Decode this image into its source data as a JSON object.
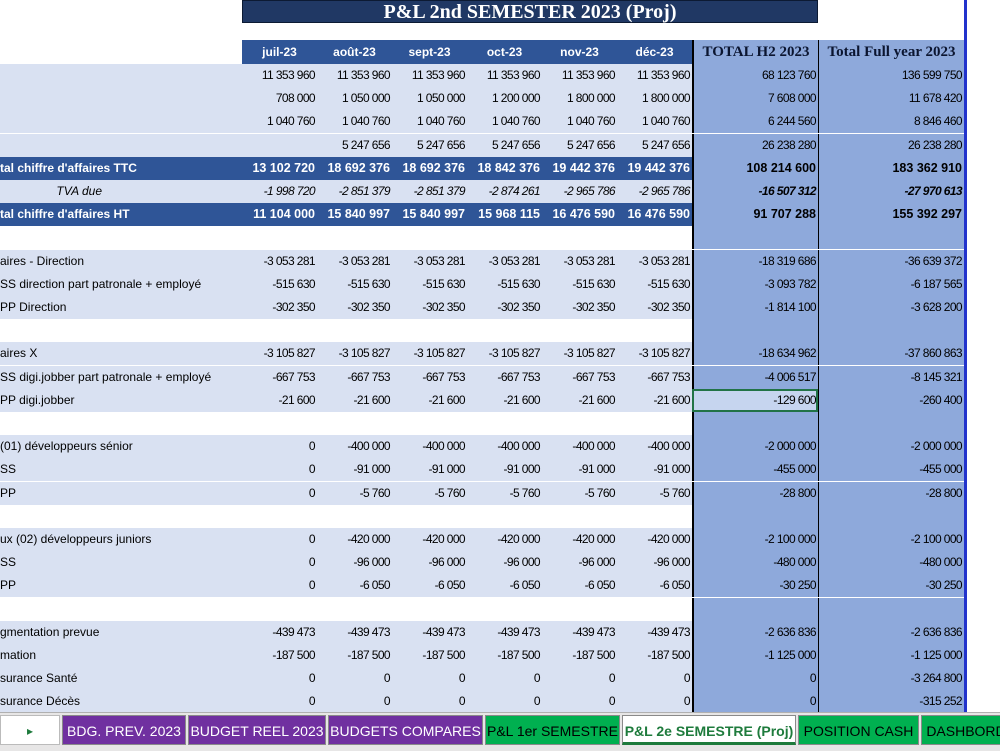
{
  "title": "P&L 2nd SEMESTER 2023 (Proj)",
  "columns": [
    "juil-23",
    "août-23",
    "sept-23",
    "oct-23",
    "nov-23",
    "déc-23"
  ],
  "total_h2_label": "TOTAL H2 2023",
  "total_year_label": "Total Full year 2023",
  "rows": [
    {
      "style": "light",
      "label": "",
      "vals": [
        "11 353 960",
        "11 353 960",
        "11 353 960",
        "11 353 960",
        "11 353 960",
        "11 353 960"
      ],
      "h2": "68 123 760",
      "fy": "136 599 750"
    },
    {
      "style": "light",
      "label": "",
      "vals": [
        "708 000",
        "1 050 000",
        "1 050 000",
        "1 200 000",
        "1 800 000",
        "1 800 000"
      ],
      "h2": "7 608 000",
      "fy": "11 678 420"
    },
    {
      "style": "light",
      "label": "",
      "vals": [
        "1 040 760",
        "1 040 760",
        "1 040 760",
        "1 040 760",
        "1 040 760",
        "1 040 760"
      ],
      "h2": "6 244 560",
      "fy": "8 846 460"
    },
    {
      "style": "light",
      "label": "",
      "vals": [
        "",
        "5 247 656",
        "5 247 656",
        "5 247 656",
        "5 247 656",
        "5 247 656"
      ],
      "h2": "26 238 280",
      "fy": "26 238 280"
    },
    {
      "style": "dark",
      "label": "tal chiffre d'affaires TTC",
      "vals": [
        "13 102 720",
        "18 692 376",
        "18 692 376",
        "18 842 376",
        "19 442 376",
        "19 442 376"
      ],
      "h2": "108 214 600",
      "fy": "183 362 910"
    },
    {
      "style": "light italic",
      "label": "TVA due",
      "vals": [
        "-1 998 720",
        "-2 851 379",
        "-2 851 379",
        "-2 874 261",
        "-2 965 786",
        "-2 965 786"
      ],
      "h2": "-16 507 312",
      "fy": "-27 970 613"
    },
    {
      "style": "dark",
      "label": "tal chiffre d'affaires HT",
      "vals": [
        "11 104 000",
        "15 840 997",
        "15 840 997",
        "15 968 115",
        "16 476 590",
        "16 476 590"
      ],
      "h2": "91 707 288",
      "fy": "155 392 297"
    },
    {
      "style": "spacer",
      "label": "",
      "vals": [
        "",
        "",
        "",
        "",
        "",
        ""
      ],
      "h2": "",
      "fy": ""
    },
    {
      "style": "light",
      "label": "aires - Direction",
      "vals": [
        "-3 053 281",
        "-3 053 281",
        "-3 053 281",
        "-3 053 281",
        "-3 053 281",
        "-3 053 281"
      ],
      "h2": "-18 319 686",
      "fy": "-36 639 372"
    },
    {
      "style": "light",
      "label": "SS direction part patronale + employé",
      "vals": [
        "-515 630",
        "-515 630",
        "-515 630",
        "-515 630",
        "-515 630",
        "-515 630"
      ],
      "h2": "-3 093 782",
      "fy": "-6 187 565"
    },
    {
      "style": "light",
      "label": "PP Direction",
      "vals": [
        "-302 350",
        "-302 350",
        "-302 350",
        "-302 350",
        "-302 350",
        "-302 350"
      ],
      "h2": "-1 814 100",
      "fy": "-3 628 200"
    },
    {
      "style": "spacer",
      "label": "",
      "vals": [
        "",
        "",
        "",
        "",
        "",
        ""
      ],
      "h2": "",
      "fy": ""
    },
    {
      "style": "light",
      "label": "aires X",
      "vals": [
        "-3 105 827",
        "-3 105 827",
        "-3 105 827",
        "-3 105 827",
        "-3 105 827",
        "-3 105 827"
      ],
      "h2": "-18 634 962",
      "fy": "-37 860 863"
    },
    {
      "style": "light",
      "label": "SS digi.jobber part patronale + employé",
      "vals": [
        "-667 753",
        "-667 753",
        "-667 753",
        "-667 753",
        "-667 753",
        "-667 753"
      ],
      "h2": "-4 006 517",
      "fy": "-8 145 321"
    },
    {
      "style": "light sel",
      "label": "PP digi.jobber",
      "vals": [
        "-21 600",
        "-21 600",
        "-21 600",
        "-21 600",
        "-21 600",
        "-21 600"
      ],
      "h2": "-129 600",
      "fy": "-260 400"
    },
    {
      "style": "spacer",
      "label": "",
      "vals": [
        "",
        "",
        "",
        "",
        "",
        ""
      ],
      "h2": "",
      "fy": ""
    },
    {
      "style": "light",
      "label": "(01) développeurs sénior",
      "vals": [
        "0",
        "-400 000",
        "-400 000",
        "-400 000",
        "-400 000",
        "-400 000"
      ],
      "h2": "-2 000 000",
      "fy": "-2 000 000"
    },
    {
      "style": "light",
      "label": "SS",
      "vals": [
        "0",
        "-91 000",
        "-91 000",
        "-91 000",
        "-91 000",
        "-91 000"
      ],
      "h2": "-455 000",
      "fy": "-455 000"
    },
    {
      "style": "light",
      "label": "PP",
      "vals": [
        "0",
        "-5 760",
        "-5 760",
        "-5 760",
        "-5 760",
        "-5 760"
      ],
      "h2": "-28 800",
      "fy": "-28 800"
    },
    {
      "style": "spacer",
      "label": "",
      "vals": [
        "",
        "",
        "",
        "",
        "",
        ""
      ],
      "h2": "",
      "fy": ""
    },
    {
      "style": "light",
      "label": "ux (02) développeurs juniors",
      "vals": [
        "0",
        "-420 000",
        "-420 000",
        "-420 000",
        "-420 000",
        "-420 000"
      ],
      "h2": "-2 100 000",
      "fy": "-2 100 000"
    },
    {
      "style": "light",
      "label": "SS",
      "vals": [
        "0",
        "-96 000",
        "-96 000",
        "-96 000",
        "-96 000",
        "-96 000"
      ],
      "h2": "-480 000",
      "fy": "-480 000"
    },
    {
      "style": "light",
      "label": "PP",
      "vals": [
        "0",
        "-6 050",
        "-6 050",
        "-6 050",
        "-6 050",
        "-6 050"
      ],
      "h2": "-30 250",
      "fy": "-30 250"
    },
    {
      "style": "spacer",
      "label": "",
      "vals": [
        "",
        "",
        "",
        "",
        "",
        ""
      ],
      "h2": "",
      "fy": ""
    },
    {
      "style": "light",
      "label": "gmentation prevue",
      "vals": [
        "-439 473",
        "-439 473",
        "-439 473",
        "-439 473",
        "-439 473",
        "-439 473"
      ],
      "h2": "-2 636 836",
      "fy": "-2 636 836"
    },
    {
      "style": "light",
      "label": "mation",
      "vals": [
        "-187 500",
        "-187 500",
        "-187 500",
        "-187 500",
        "-187 500",
        "-187 500"
      ],
      "h2": "-1 125 000",
      "fy": "-1 125 000"
    },
    {
      "style": "light",
      "label": "surance Santé",
      "vals": [
        "0",
        "0",
        "0",
        "0",
        "0",
        "0"
      ],
      "h2": "0",
      "fy": "-3 264 800"
    },
    {
      "style": "light",
      "label": "surance Décès",
      "vals": [
        "0",
        "0",
        "0",
        "0",
        "0",
        "0"
      ],
      "h2": "0",
      "fy": "-315 252"
    }
  ],
  "tabs": [
    {
      "label": "BDG. PREV. 2023",
      "color": "purple"
    },
    {
      "label": "BUDGET REEL 2023",
      "color": "purple"
    },
    {
      "label": "BUDGETS COMPARES",
      "color": "purple"
    },
    {
      "label": "P&L 1er SEMESTRE",
      "color": "green"
    },
    {
      "label": "P&L 2e SEMESTRE (Proj)",
      "color": "active"
    },
    {
      "label": "POSITION CASH",
      "color": "green"
    },
    {
      "label": "DASHBORD",
      "color": "green"
    }
  ],
  "nav_arrow": "▸"
}
